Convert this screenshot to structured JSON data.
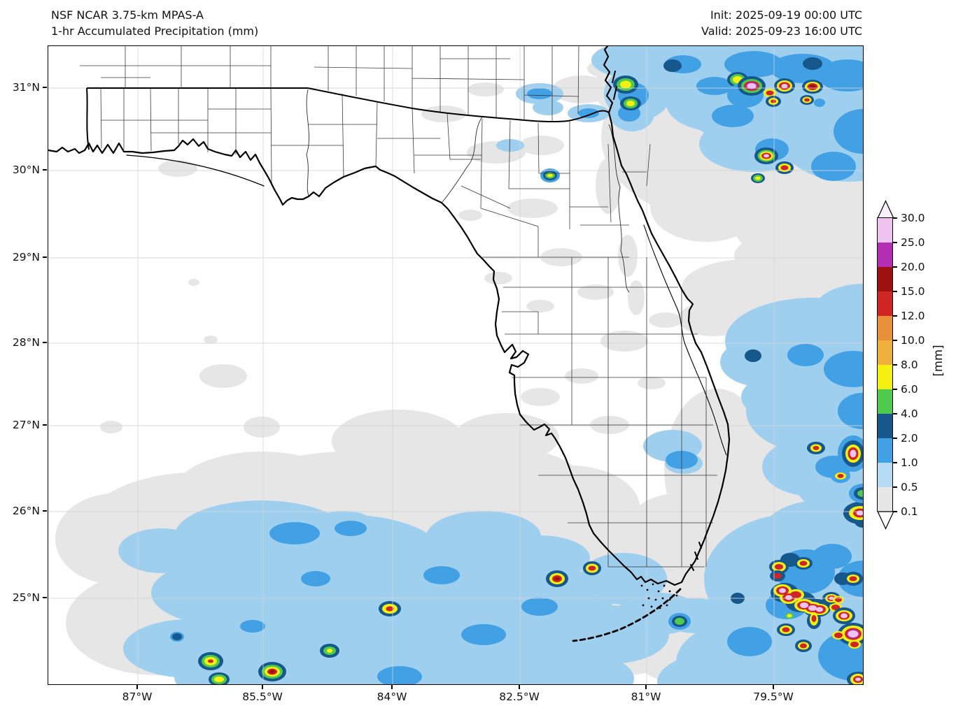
{
  "header": {
    "title_line1": "NSF NCAR 3.75-km MPAS-A",
    "title_line2": "1-hr Accumulated Precipitation (mm)",
    "init": "Init: 2025-09-19 00:00 UTC",
    "valid": "Valid: 2025-09-23 16:00 UTC"
  },
  "map": {
    "region": "Florida, Gulf of Mexico and western Atlantic",
    "x_ticks": [
      "87°W",
      "85.5°W",
      "84°W",
      "82.5°W",
      "81°W",
      "79.5°W"
    ],
    "y_ticks": [
      "31°N",
      "30°N",
      "29°N",
      "28°N",
      "27°N",
      "26°N",
      "25°N"
    ]
  },
  "colorbar": {
    "units": "[mm]",
    "tick_labels": [
      "30.0",
      "25.0",
      "20.0",
      "15.0",
      "12.0",
      "10.0",
      "8.0",
      "6.0",
      "4.0",
      "2.0",
      "1.0",
      "0.5",
      "0.1"
    ],
    "segment_colors_top_down": [
      "#f0c4f0",
      "#b32eb3",
      "#9e1111",
      "#d02525",
      "#e8913a",
      "#eeb03a",
      "#f4f112",
      "#4ecb4e",
      "#17588c",
      "#42a0e5",
      "#b5daf3",
      "#e6e6e6"
    ],
    "over_color": "#fbeffb",
    "under_color": "#ffffff"
  },
  "palette": {
    "gray": "#e6e6e6",
    "blue_light": "#9fcfef",
    "blue_med": "#42a0e5",
    "blue_dark": "#17588c",
    "green": "#4ecb4e",
    "yellow": "#f4f112",
    "orange": "#eeb03a",
    "orange_dark": "#e8913a",
    "red": "#d02525",
    "red_dark": "#9e1111",
    "magenta": "#b32eb3",
    "pink": "#f0c4f0"
  },
  "chart_data": {
    "type": "heatmap",
    "title": "1-hr Accumulated Precipitation (mm)",
    "units": "mm",
    "levels_mm": [
      0.1,
      0.5,
      1.0,
      2.0,
      4.0,
      6.0,
      8.0,
      10.0,
      12.0,
      15.0,
      20.0,
      25.0,
      30.0
    ],
    "xlabel_ticks_deg_west": [
      87.0,
      85.5,
      84.0,
      82.5,
      81.0,
      79.5
    ],
    "ylabel_ticks_deg_north": [
      31,
      30,
      29,
      28,
      27,
      26,
      25
    ],
    "lon_range_deg_west": [
      88.1,
      78.4
    ],
    "lat_range_deg_north": [
      24.0,
      31.5
    ],
    "legend_position": "right",
    "grid": true,
    "summary": "Light 0.1-2 mm precipitation over Gulf waters south/southwest of Florida and the western Atlantic; strong convective cells (6-30+ mm cores) offshore northeast Florida and east/southeast of Miami near the Bahamas; scattered strong cells in the far southern Gulf."
  }
}
